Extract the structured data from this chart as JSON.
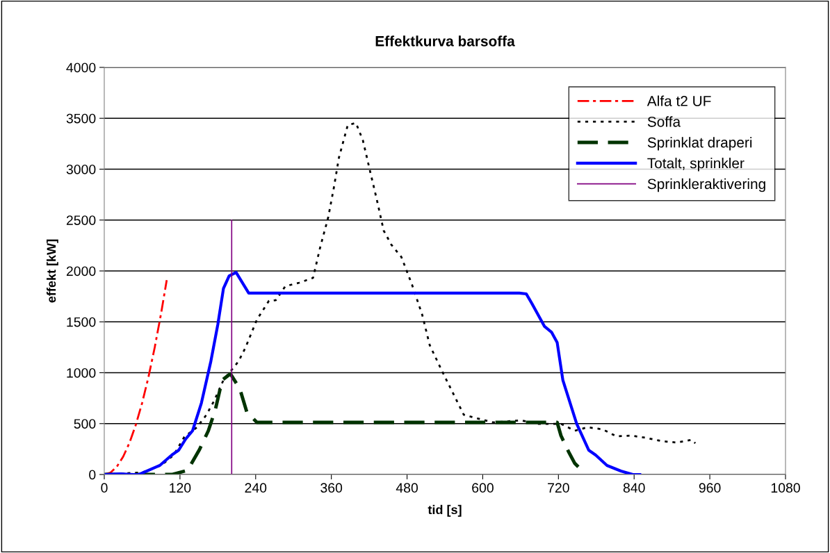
{
  "chart_data": {
    "type": "line",
    "title": "Effektkurva barsoffa",
    "xlabel": "tid [s]",
    "ylabel": "effekt [kW]",
    "xlim": [
      0,
      1080
    ],
    "xticks": [
      0,
      120,
      240,
      360,
      480,
      600,
      720,
      840,
      960,
      1080
    ],
    "ylim": [
      0,
      4000
    ],
    "yticks": [
      0,
      500,
      1000,
      1500,
      2000,
      2500,
      3000,
      3500,
      4000
    ],
    "grid": "y",
    "legend": "top right",
    "series": [
      {
        "name": "Alfa t2 UF",
        "color": "#ff0000",
        "line_style": "dashdot",
        "x": [
          0,
          10,
          20,
          30,
          40,
          50,
          60,
          70,
          80,
          90,
          99
        ],
        "values": [
          0,
          19,
          78,
          176,
          312,
          488,
          702,
          956,
          1249,
          1580,
          1910
        ]
      },
      {
        "name": "Soffa",
        "color": "#000000",
        "line_style": "dotted",
        "x": [
          0,
          30,
          60,
          90,
          110,
          127,
          147,
          162,
          174,
          189,
          213,
          224,
          242,
          261,
          272,
          287,
          309,
          331,
          342,
          355,
          364,
          372,
          386,
          399,
          410,
          421,
          432,
          443,
          455,
          471,
          488,
          504,
          516,
          537,
          559,
          570,
          592,
          617,
          661,
          687,
          724,
          746,
          766,
          790,
          812,
          835,
          857,
          884,
          907,
          931,
          937
        ],
        "values": [
          0,
          10,
          20,
          89,
          191,
          370,
          464,
          587,
          723,
          928,
          1113,
          1249,
          1522,
          1706,
          1713,
          1850,
          1884,
          1932,
          2225,
          2526,
          2819,
          3113,
          3433,
          3454,
          3283,
          2990,
          2703,
          2396,
          2259,
          2137,
          1863,
          1570,
          1270,
          997,
          723,
          587,
          550,
          512,
          532,
          498,
          498,
          430,
          464,
          444,
          375,
          382,
          362,
          328,
          314,
          341,
          307
        ]
      },
      {
        "name": "Sprinklat draperi",
        "color": "#003300",
        "line_style": "dashed",
        "x": [
          0,
          107,
          132,
          151,
          165,
          176,
          187,
          200,
          215,
          226,
          242,
          718,
          724,
          736,
          746,
          758,
          762
        ],
        "values": [
          0,
          0,
          41,
          246,
          430,
          635,
          928,
          990,
          840,
          614,
          512,
          512,
          382,
          225,
          109,
          34,
          0
        ]
      },
      {
        "name": "Totalt, sprinkler",
        "color": "#0000ff",
        "line_style": "solid",
        "x": [
          0,
          25,
          47,
          55,
          88,
          107,
          118,
          129,
          140,
          154,
          169,
          180,
          189,
          198,
          209,
          229,
          658,
          669,
          678,
          698,
          709,
          718,
          727,
          749,
          768,
          779,
          797,
          819,
          838,
          849
        ],
        "values": [
          0,
          7,
          0,
          0,
          89,
          191,
          239,
          348,
          430,
          703,
          1113,
          1474,
          1829,
          1952,
          1986,
          1782,
          1782,
          1775,
          1679,
          1454,
          1399,
          1297,
          928,
          498,
          239,
          191,
          89,
          34,
          0,
          0
        ]
      },
      {
        "name": "Sprinkleraktivering",
        "color": "#800080",
        "line_style": "solid",
        "x": [
          202,
          202
        ],
        "values": [
          0,
          2500
        ]
      }
    ]
  }
}
